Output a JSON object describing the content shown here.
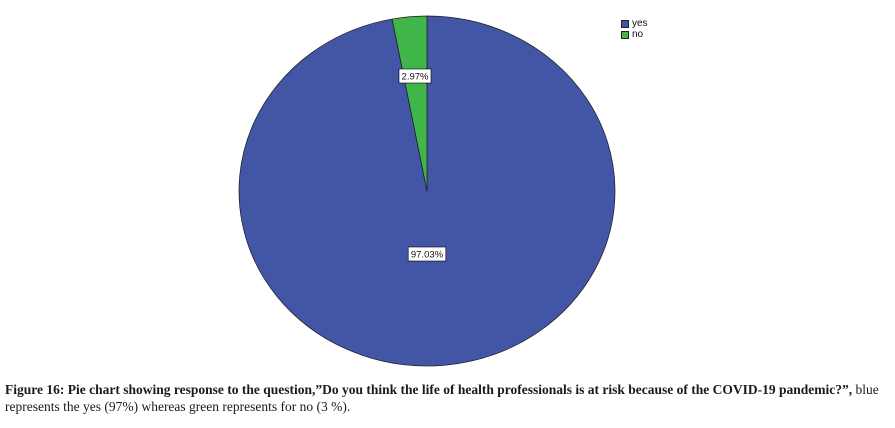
{
  "chart_data": {
    "type": "pie",
    "slices": [
      {
        "label": "yes",
        "value": 97.03,
        "display": "97.03%",
        "color": "#4355a5"
      },
      {
        "label": "no",
        "value": 2.97,
        "display": "2.97%",
        "color": "#3fb54a"
      }
    ],
    "legend": {
      "placement": "top-right",
      "entries": [
        "yes",
        "no"
      ]
    },
    "start_angle_deg": 0,
    "direction": "clockwise"
  },
  "caption": {
    "label": "Figure 16:",
    "text": " Pie chart showing response to the question,”Do you think the life of health professionals is at risk because of the COVID-19 pandemic?”,",
    "tail": " blue represents the yes  (97%) whereas green represents for no (3 %)."
  }
}
